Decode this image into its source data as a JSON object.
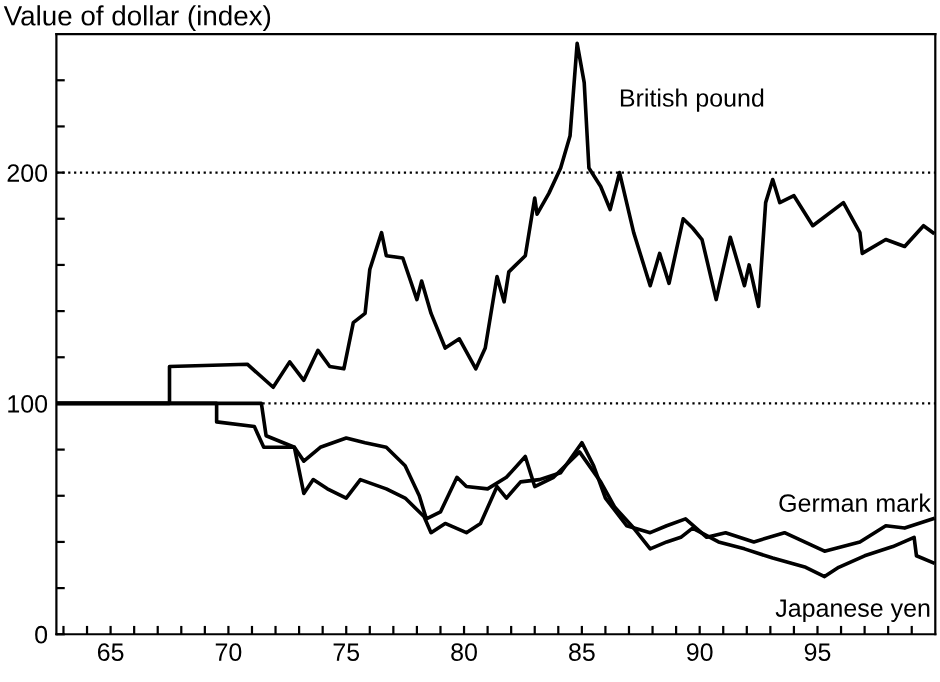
{
  "chart_data": {
    "type": "line",
    "ylabel": "Value of dollar (index)",
    "xlim": [
      62.7,
      100
    ],
    "ylim": [
      0,
      260
    ],
    "xticks": [
      {
        "value": 63,
        "label": null
      },
      {
        "value": 64,
        "label": null
      },
      65,
      {
        "value": 66,
        "label": null
      },
      {
        "value": 67,
        "label": null
      },
      {
        "value": 68,
        "label": null
      },
      {
        "value": 69,
        "label": null
      },
      70,
      {
        "value": 71,
        "label": null
      },
      {
        "value": 72,
        "label": null
      },
      {
        "value": 73,
        "label": null
      },
      {
        "value": 74,
        "label": null
      },
      75,
      {
        "value": 76,
        "label": null
      },
      {
        "value": 77,
        "label": null
      },
      {
        "value": 78,
        "label": null
      },
      {
        "value": 79,
        "label": null
      },
      80,
      {
        "value": 81,
        "label": null
      },
      {
        "value": 82,
        "label": null
      },
      {
        "value": 83,
        "label": null
      },
      {
        "value": 84,
        "label": null
      },
      85,
      {
        "value": 86,
        "label": null
      },
      {
        "value": 87,
        "label": null
      },
      {
        "value": 88,
        "label": null
      },
      {
        "value": 89,
        "label": null
      },
      90,
      {
        "value": 91,
        "label": null
      },
      {
        "value": 92,
        "label": null
      },
      {
        "value": 93,
        "label": null
      },
      {
        "value": 94,
        "label": null
      },
      95,
      {
        "value": 96,
        "label": null
      },
      {
        "value": 97,
        "label": null
      },
      {
        "value": 98,
        "label": null
      },
      {
        "value": 99,
        "label": null
      }
    ],
    "yticks": [
      0,
      {
        "value": 20,
        "label": null
      },
      {
        "value": 40,
        "label": null
      },
      {
        "value": 60,
        "label": null
      },
      {
        "value": 80,
        "label": null
      },
      100,
      {
        "value": 120,
        "label": null
      },
      {
        "value": 140,
        "label": null
      },
      {
        "value": 160,
        "label": null
      },
      {
        "value": 180,
        "label": null
      },
      200,
      {
        "value": 220,
        "label": null
      },
      {
        "value": 240,
        "label": null
      }
    ],
    "ref_lines": [
      {
        "axis": "y",
        "value": 100,
        "line_style": "dotted"
      },
      {
        "axis": "y",
        "value": 200,
        "line_style": "dotted"
      }
    ],
    "grid": false,
    "legend": false,
    "marker": "none",
    "line_style": "solid",
    "series": [
      {
        "name": "British pound",
        "color": "#000000",
        "x": [
          62.7,
          67.5,
          67.5,
          70.8,
          71.9,
          72.6,
          73.2,
          73.8,
          74.3,
          74.9,
          75.3,
          75.8,
          76.0,
          76.5,
          76.7,
          77.4,
          78.0,
          78.2,
          78.6,
          79.2,
          79.8,
          80.5,
          80.9,
          81.4,
          81.7,
          81.9,
          82.6,
          83.0,
          83.1,
          83.6,
          84.1,
          84.5,
          84.8,
          85.1,
          85.3,
          85.8,
          86.2,
          86.6,
          87.2,
          87.9,
          88.3,
          88.7,
          89.3,
          89.7,
          90.1,
          90.7,
          91.3,
          91.9,
          92.1,
          92.5,
          92.8,
          93.1,
          93.4,
          94.0,
          94.8,
          96.1,
          96.8,
          96.9,
          97.9,
          98.7,
          99.5,
          99.9
        ],
        "values": [
          100,
          100,
          116,
          117,
          107,
          118,
          110,
          123,
          116,
          115,
          135,
          139,
          158,
          174,
          164,
          163,
          145,
          153,
          139,
          124,
          128,
          115,
          124,
          155,
          144,
          157,
          164,
          189,
          182,
          191,
          202,
          216,
          256,
          239,
          202,
          194,
          184,
          200,
          174,
          151,
          165,
          152,
          180,
          176,
          171,
          145,
          172,
          151,
          160,
          142,
          187,
          197,
          187,
          190,
          177,
          187,
          174,
          165,
          171,
          168,
          177,
          174
        ]
      },
      {
        "name": "German mark",
        "color": "#000000",
        "x": [
          62.7,
          69.5,
          69.5,
          71.1,
          71.5,
          72.8,
          73.2,
          73.6,
          74.2,
          75.0,
          75.6,
          76.7,
          77.5,
          78.3,
          78.6,
          79.2,
          80.1,
          80.7,
          81.4,
          81.8,
          82.4,
          83.2,
          84.1,
          85.0,
          85.5,
          86.0,
          86.9,
          87.9,
          88.6,
          89.4,
          90.3,
          91.1,
          92.3,
          93.6,
          95.3,
          96.8,
          97.9,
          98.7,
          99.9
        ],
        "values": [
          100,
          100,
          92,
          90,
          81,
          81,
          61,
          67,
          63,
          59,
          67,
          63,
          59,
          51,
          44,
          48,
          44,
          48,
          64,
          59,
          66,
          67,
          70,
          83,
          73,
          59,
          47,
          44,
          47,
          50,
          42,
          44,
          40,
          44,
          36,
          40,
          47,
          46,
          50
        ]
      },
      {
        "name": "Japanese yen",
        "color": "#000000",
        "x": [
          62.7,
          71.4,
          71.6,
          72.8,
          73.2,
          73.9,
          75.0,
          75.8,
          76.7,
          77.5,
          78.1,
          78.4,
          79.0,
          79.7,
          80.1,
          81.0,
          81.8,
          82.6,
          83.0,
          83.8,
          84.9,
          85.8,
          86.4,
          87.2,
          87.9,
          88.6,
          89.2,
          89.7,
          90.8,
          91.9,
          93.1,
          94.5,
          95.3,
          95.9,
          97.0,
          98.2,
          99.1,
          99.2,
          99.9
        ],
        "values": [
          100,
          100,
          86,
          81,
          75,
          81,
          85,
          83,
          81,
          73,
          60,
          50,
          53,
          68,
          64,
          63,
          68,
          77,
          64,
          68,
          79,
          66,
          55,
          46,
          37,
          40,
          42,
          46,
          40,
          37,
          33,
          29,
          25,
          29,
          34,
          38,
          42,
          34,
          31
        ]
      }
    ]
  }
}
